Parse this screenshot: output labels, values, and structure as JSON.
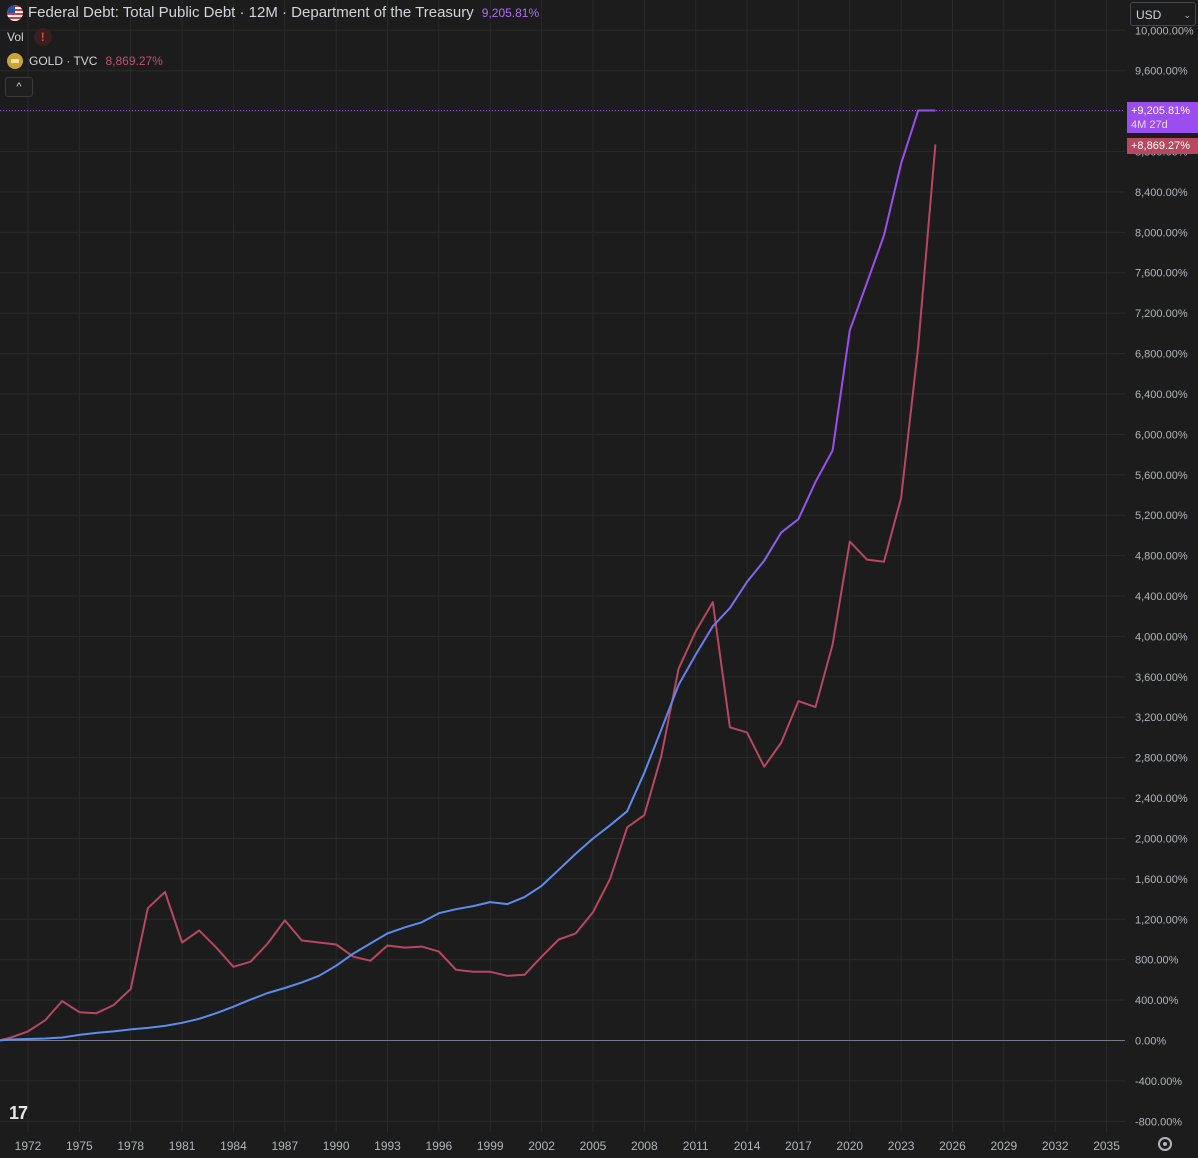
{
  "legend": {
    "main_title": "Federal Debt: Total Public Debt · 12M · Department of the Treasury",
    "main_value": "9,205.81%",
    "vol_label": "Vol",
    "vol_warning": "!",
    "gold_title": "GOLD · TVC",
    "gold_value": "8,869.27%",
    "collapse": "^"
  },
  "currency": {
    "label": "USD"
  },
  "price_tags": {
    "debt_value": "+9,205.81%",
    "debt_countdown": "4M 27d",
    "gold_value": "+8,869.27%"
  },
  "branding": {
    "logo_text": "17"
  },
  "colors": {
    "background": "#1c1c1c",
    "grid": "#2a2a2a",
    "debt_line_early": "#5b8def",
    "debt_line_late": "#9c4df0",
    "gold_line": "#b84760",
    "axis_text": "#b2b5be",
    "zero_line": "#787b86"
  },
  "chart_data": {
    "type": "line",
    "title": "Federal Debt: Total Public Debt · 12M · Department of the Treasury",
    "xlabel": "",
    "ylabel": "",
    "x_ticks": [
      "1972",
      "1975",
      "1978",
      "1981",
      "1984",
      "1987",
      "1990",
      "1993",
      "1996",
      "1999",
      "2002",
      "2005",
      "2008",
      "2011",
      "2014",
      "2017",
      "2020",
      "2023",
      "2026",
      "2029",
      "2032",
      "2035"
    ],
    "y_ticks": [
      "10,000.00%",
      "9,600.00%",
      "9,200.00%",
      "8,800.00%",
      "8,400.00%",
      "8,000.00%",
      "7,600.00%",
      "7,200.00%",
      "6,800.00%",
      "6,400.00%",
      "6,000.00%",
      "5,600.00%",
      "5,200.00%",
      "4,800.00%",
      "4,400.00%",
      "4,000.00%",
      "3,600.00%",
      "3,200.00%",
      "2,800.00%",
      "2,400.00%",
      "2,000.00%",
      "1,600.00%",
      "1,200.00%",
      "800.00%",
      "400.00%",
      "0.00%",
      "-400.00%",
      "-800.00%"
    ],
    "ylim": [
      -900,
      10100
    ],
    "xlim": [
      1970.3,
      2036
    ],
    "grid": true,
    "series": [
      {
        "name": "Federal Debt: Total Public Debt",
        "points": [
          [
            1970.3,
            0
          ],
          [
            1971,
            10
          ],
          [
            1972,
            15
          ],
          [
            1973,
            20
          ],
          [
            1974,
            30
          ],
          [
            1975,
            55
          ],
          [
            1976,
            75
          ],
          [
            1977,
            90
          ],
          [
            1978,
            110
          ],
          [
            1979,
            125
          ],
          [
            1980,
            145
          ],
          [
            1981,
            175
          ],
          [
            1982,
            215
          ],
          [
            1983,
            270
          ],
          [
            1984,
            335
          ],
          [
            1985,
            405
          ],
          [
            1986,
            470
          ],
          [
            1987,
            520
          ],
          [
            1988,
            575
          ],
          [
            1989,
            640
          ],
          [
            1990,
            740
          ],
          [
            1991,
            860
          ],
          [
            1992,
            960
          ],
          [
            1993,
            1060
          ],
          [
            1994,
            1120
          ],
          [
            1995,
            1170
          ],
          [
            1996,
            1260
          ],
          [
            1997,
            1300
          ],
          [
            1998,
            1330
          ],
          [
            1999,
            1370
          ],
          [
            2000,
            1350
          ],
          [
            2001,
            1420
          ],
          [
            2002,
            1530
          ],
          [
            2003,
            1690
          ],
          [
            2004,
            1850
          ],
          [
            2005,
            2000
          ],
          [
            2006,
            2130
          ],
          [
            2007,
            2270
          ],
          [
            2008,
            2650
          ],
          [
            2009,
            3080
          ],
          [
            2010,
            3520
          ],
          [
            2011,
            3820
          ],
          [
            2012,
            4100
          ],
          [
            2013,
            4280
          ],
          [
            2014,
            4540
          ],
          [
            2015,
            4750
          ],
          [
            2016,
            5030
          ],
          [
            2017,
            5160
          ],
          [
            2018,
            5530
          ],
          [
            2019,
            5840
          ],
          [
            2020,
            7030
          ],
          [
            2021,
            7500
          ],
          [
            2022,
            7970
          ],
          [
            2023,
            8680
          ],
          [
            2024,
            9205.81
          ],
          [
            2025,
            9205.81
          ]
        ]
      },
      {
        "name": "GOLD · TVC",
        "points": [
          [
            1970.3,
            0
          ],
          [
            1971,
            30
          ],
          [
            1972,
            90
          ],
          [
            1973,
            200
          ],
          [
            1974,
            390
          ],
          [
            1975,
            280
          ],
          [
            1976,
            270
          ],
          [
            1977,
            350
          ],
          [
            1978,
            510
          ],
          [
            1979,
            1310
          ],
          [
            1980,
            1470
          ],
          [
            1981,
            970
          ],
          [
            1982,
            1090
          ],
          [
            1983,
            920
          ],
          [
            1984,
            730
          ],
          [
            1985,
            780
          ],
          [
            1986,
            960
          ],
          [
            1987,
            1190
          ],
          [
            1988,
            990
          ],
          [
            1989,
            970
          ],
          [
            1990,
            950
          ],
          [
            1991,
            830
          ],
          [
            1992,
            790
          ],
          [
            1993,
            940
          ],
          [
            1994,
            920
          ],
          [
            1995,
            930
          ],
          [
            1996,
            880
          ],
          [
            1997,
            700
          ],
          [
            1998,
            680
          ],
          [
            1999,
            680
          ],
          [
            2000,
            640
          ],
          [
            2001,
            650
          ],
          [
            2002,
            830
          ],
          [
            2003,
            1000
          ],
          [
            2004,
            1060
          ],
          [
            2005,
            1270
          ],
          [
            2006,
            1600
          ],
          [
            2007,
            2110
          ],
          [
            2008,
            2230
          ],
          [
            2009,
            2820
          ],
          [
            2010,
            3680
          ],
          [
            2011,
            4050
          ],
          [
            2012,
            4340
          ],
          [
            2013,
            3100
          ],
          [
            2014,
            3050
          ],
          [
            2015,
            2710
          ],
          [
            2016,
            2950
          ],
          [
            2017,
            3360
          ],
          [
            2018,
            3300
          ],
          [
            2019,
            3920
          ],
          [
            2020,
            4940
          ],
          [
            2021,
            4760
          ],
          [
            2022,
            4740
          ],
          [
            2023,
            5370
          ],
          [
            2024,
            6870
          ],
          [
            2025,
            8869.27
          ]
        ]
      }
    ],
    "legend_position": "top-left"
  }
}
